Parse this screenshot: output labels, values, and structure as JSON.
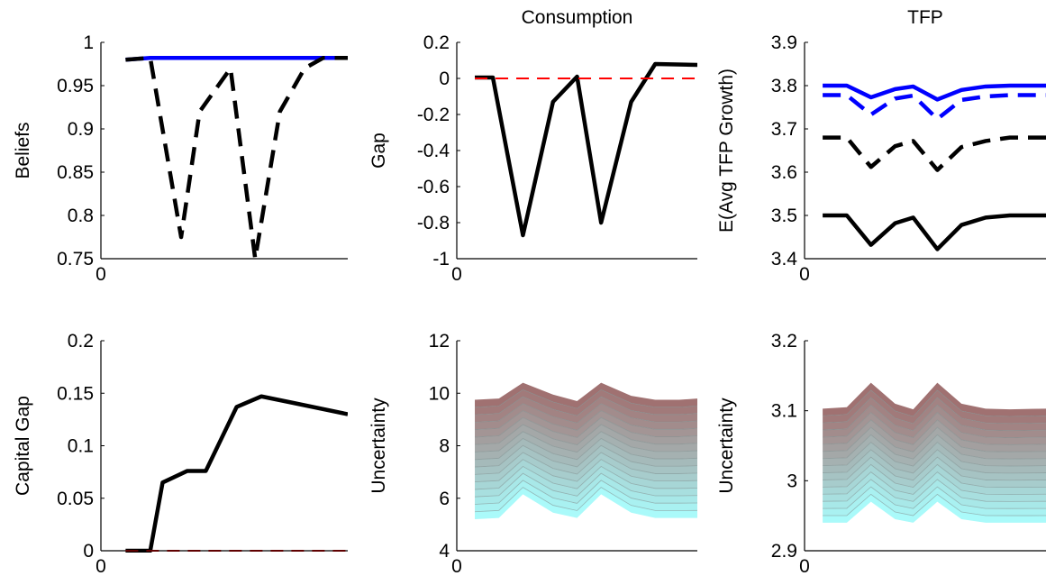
{
  "chart_data": [
    {
      "id": "beliefs",
      "type": "line",
      "title": "",
      "xlabel": "",
      "ylabel": "Beliefs",
      "xlim": [
        0,
        40
      ],
      "ylim": [
        0.75,
        1
      ],
      "xticks": [
        "0"
      ],
      "yticks": [
        "0.75",
        "0.8",
        "0.85",
        "0.9",
        "0.95",
        "1"
      ],
      "grid": false,
      "series": [
        {
          "color": "#0000ff",
          "dash": "solid",
          "x": [
            4,
            8,
            40
          ],
          "y": [
            0.98,
            0.982,
            0.982
          ]
        },
        {
          "color": "#000000",
          "dash": "dashed",
          "x": [
            4,
            8,
            13,
            16,
            21,
            25,
            29,
            33,
            36,
            40
          ],
          "y": [
            0.98,
            0.982,
            0.775,
            0.92,
            0.97,
            0.75,
            0.92,
            0.97,
            0.982,
            0.982
          ]
        }
      ]
    },
    {
      "id": "consumption-gap",
      "type": "line",
      "title": "Consumption",
      "xlabel": "",
      "ylabel": "Gap",
      "xlim": [
        0,
        40
      ],
      "ylim": [
        -1,
        0.2
      ],
      "xticks": [
        "0"
      ],
      "yticks": [
        "-1",
        "-0.8",
        "-0.6",
        "-0.4",
        "-0.2",
        "0",
        "0.2"
      ],
      "grid": false,
      "series": [
        {
          "color": "#000000",
          "dash": "solid",
          "x": [
            3,
            6,
            11,
            16,
            20,
            24,
            29,
            33,
            40
          ],
          "y": [
            0.005,
            0.005,
            -0.87,
            -0.13,
            0.01,
            -0.8,
            -0.13,
            0.08,
            0.075
          ]
        },
        {
          "color": "#ff0000",
          "dash": "dashed",
          "x": [
            3,
            40
          ],
          "y": [
            0,
            0
          ]
        }
      ]
    },
    {
      "id": "tfp-expectation",
      "type": "line",
      "title": "TFP",
      "xlabel": "",
      "ylabel": "E(Avg TFP Growth)",
      "xlim": [
        0,
        40
      ],
      "ylim": [
        3.4,
        3.9
      ],
      "xticks": [
        "0"
      ],
      "yticks": [
        "3.4",
        "3.5",
        "3.6",
        "3.7",
        "3.8",
        "3.9"
      ],
      "grid": false,
      "series": [
        {
          "color": "#0000ff",
          "dash": "solid",
          "x": [
            3,
            7,
            11,
            15,
            18,
            22,
            26,
            30,
            34,
            40
          ],
          "y": [
            3.8,
            3.8,
            3.773,
            3.792,
            3.798,
            3.768,
            3.79,
            3.798,
            3.8,
            3.8
          ]
        },
        {
          "color": "#0000ff",
          "dash": "dashed",
          "x": [
            3,
            7,
            11,
            15,
            18,
            22,
            26,
            30,
            34,
            40
          ],
          "y": [
            3.778,
            3.778,
            3.733,
            3.77,
            3.777,
            3.723,
            3.767,
            3.775,
            3.778,
            3.778
          ]
        },
        {
          "color": "#000000",
          "dash": "dashed",
          "x": [
            3,
            7,
            11,
            15,
            18,
            22,
            26,
            30,
            34,
            40
          ],
          "y": [
            3.68,
            3.68,
            3.612,
            3.66,
            3.672,
            3.605,
            3.658,
            3.672,
            3.68,
            3.68
          ]
        },
        {
          "color": "#000000",
          "dash": "solid",
          "x": [
            3,
            7,
            11,
            15,
            18,
            22,
            26,
            30,
            34,
            40
          ],
          "y": [
            3.5,
            3.5,
            3.432,
            3.482,
            3.495,
            3.422,
            3.478,
            3.495,
            3.5,
            3.5
          ]
        }
      ]
    },
    {
      "id": "capital-gap",
      "type": "line",
      "title": "",
      "xlabel": "",
      "ylabel": "Capital Gap",
      "xlim": [
        0,
        40
      ],
      "ylim": [
        0,
        0.2
      ],
      "xticks": [
        "0"
      ],
      "yticks": [
        "0",
        "0.05",
        "0.1",
        "0.15",
        "0.2"
      ],
      "grid": false,
      "series": [
        {
          "color": "#000000",
          "dash": "solid",
          "x": [
            4,
            8,
            10,
            14,
            17,
            22,
            26,
            31,
            40
          ],
          "y": [
            0,
            0,
            0.065,
            0.076,
            0.076,
            0.137,
            0.147,
            0.141,
            0.13
          ]
        },
        {
          "color": "#ff0000",
          "dash": "dashed",
          "x": [
            4,
            40
          ],
          "y": [
            0,
            0
          ]
        }
      ]
    },
    {
      "id": "consumption-uncertainty",
      "type": "area",
      "title": "",
      "xlabel": "",
      "ylabel": "Uncertainty",
      "xlim": [
        0,
        40
      ],
      "ylim": [
        4,
        12
      ],
      "xticks": [
        "0"
      ],
      "yticks": [
        "4",
        "6",
        "8",
        "10",
        "12"
      ],
      "grid": false,
      "fan": {
        "x": [
          3,
          7,
          11,
          16,
          20,
          24,
          29,
          33,
          37,
          40
        ],
        "upper": [
          9.75,
          9.8,
          10.4,
          9.95,
          9.7,
          10.4,
          9.9,
          9.75,
          9.75,
          9.8
        ],
        "lower": [
          5.2,
          5.25,
          6.15,
          5.45,
          5.25,
          6.15,
          5.45,
          5.25,
          5.25,
          5.25
        ],
        "bands": 16,
        "top_color": "#a06c6c",
        "bottom_color": "#aaffff"
      }
    },
    {
      "id": "tfp-uncertainty",
      "type": "area",
      "title": "",
      "xlabel": "",
      "ylabel": "Uncertainty",
      "xlim": [
        0,
        40
      ],
      "ylim": [
        2.9,
        3.2
      ],
      "xticks": [
        "0"
      ],
      "yticks": [
        "2.9",
        "3",
        "3.1",
        "3.2"
      ],
      "grid": false,
      "fan": {
        "x": [
          3,
          7,
          11,
          15,
          18,
          22,
          26,
          30,
          34,
          40
        ],
        "upper": [
          3.103,
          3.105,
          3.14,
          3.11,
          3.102,
          3.14,
          3.11,
          3.103,
          3.102,
          3.103
        ],
        "lower": [
          2.94,
          2.94,
          2.97,
          2.945,
          2.94,
          2.97,
          2.945,
          2.94,
          2.94,
          2.94
        ],
        "bands": 16,
        "top_color": "#a06c6c",
        "bottom_color": "#aaffff"
      }
    }
  ]
}
